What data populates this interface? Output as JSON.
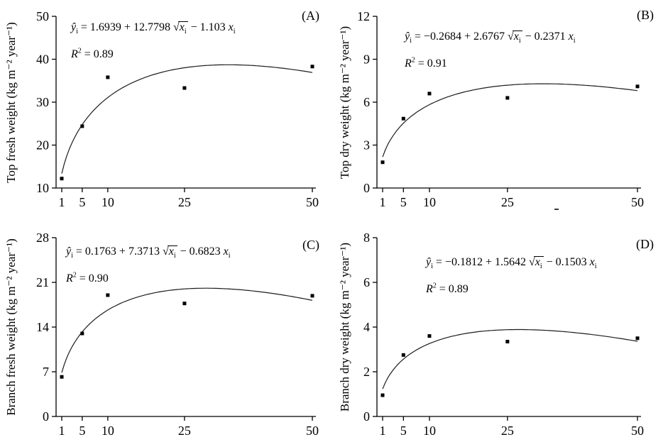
{
  "figure": {
    "background": "#ffffff",
    "ink": "#000000",
    "layout": "2x2 panel grid of regression plots",
    "shared_xticks": [
      1,
      5,
      10,
      25,
      50
    ]
  },
  "chart_data": [
    {
      "type": "scatter",
      "panel_label": "(A)",
      "ylabel": "Top fresh weight (kg m⁻² year⁻¹)",
      "x": [
        1,
        5,
        10,
        25,
        50
      ],
      "y": [
        12.2,
        24.4,
        35.8,
        33.3,
        38.3
      ],
      "xticks": [
        1,
        5,
        10,
        25,
        50
      ],
      "yticks": [
        10,
        20,
        30,
        40,
        50
      ],
      "xlim": [
        1,
        50
      ],
      "ylim": [
        10,
        50
      ],
      "fit": {
        "model": "y = a + b*sqrt(x) + c*x",
        "intercept": 1.6939,
        "sqrt_coef": 12.7798,
        "x_coef": -1.103
      },
      "equation_text": "ŷᵢ = 1.6939 + 12.7798 √xᵢ − 1.103 xᵢ",
      "r2": "0.89",
      "r2_text": "R² = 0.89"
    },
    {
      "type": "scatter",
      "panel_label": "(B)",
      "ylabel": "Top dry weight (kg m⁻² year⁻¹)",
      "x": [
        1,
        5,
        10,
        25,
        50
      ],
      "y": [
        1.8,
        4.85,
        6.6,
        6.3,
        7.1
      ],
      "xticks": [
        1,
        5,
        10,
        25,
        50
      ],
      "yticks": [
        0,
        3,
        6,
        9,
        12
      ],
      "xlim": [
        1,
        50
      ],
      "ylim": [
        0,
        12
      ],
      "fit": {
        "model": "y = a + b*sqrt(x) + c*x",
        "intercept": -0.2684,
        "sqrt_coef": 2.6767,
        "x_coef": -0.2371
      },
      "equation_text": "ŷᵢ = −0.2684 + 2.6767 √xᵢ − 0.2371 xᵢ",
      "r2": "0.91",
      "r2_text": "R² = 0.91"
    },
    {
      "type": "scatter",
      "panel_label": "(C)",
      "ylabel": "Branch fresh weight (kg m⁻² year⁻¹)",
      "x": [
        1,
        5,
        10,
        25,
        50
      ],
      "y": [
        6.2,
        13.0,
        19.0,
        17.7,
        18.9
      ],
      "xticks": [
        1,
        5,
        10,
        25,
        50
      ],
      "yticks": [
        0,
        7,
        14,
        21,
        28
      ],
      "xlim": [
        1,
        50
      ],
      "ylim": [
        0,
        28
      ],
      "fit": {
        "model": "y = a + b*sqrt(x) + c*x",
        "intercept": 0.1763,
        "sqrt_coef": 7.3713,
        "x_coef": -0.6823
      },
      "equation_text": "ŷᵢ = 0.1763 + 7.3713 √xᵢ − 0.6823 xᵢ",
      "r2": "0.90",
      "r2_text": "R² = 0.90"
    },
    {
      "type": "scatter",
      "panel_label": "(D)",
      "ylabel": "Branch dry weight (kg m⁻² year⁻¹)",
      "x": [
        1,
        5,
        10,
        25,
        50
      ],
      "y": [
        0.95,
        2.75,
        3.6,
        3.35,
        3.5
      ],
      "xticks": [
        1,
        5,
        10,
        25,
        50
      ],
      "yticks": [
        0,
        2,
        4,
        6,
        8
      ],
      "xlim": [
        1,
        50
      ],
      "ylim": [
        0,
        8
      ],
      "fit": {
        "model": "y = a + b*sqrt(x) + c*x",
        "intercept": -0.1812,
        "sqrt_coef": 1.5642,
        "x_coef": -0.1503
      },
      "equation_text": "ŷᵢ = −0.1812 + 1.5642 √xᵢ − 0.1503 xᵢ",
      "r2": "0.89",
      "r2_text": "R² = 0.89"
    }
  ]
}
